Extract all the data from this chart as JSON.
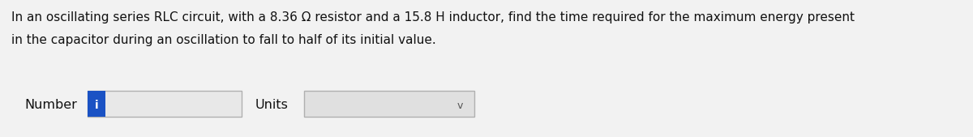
{
  "background_color": "#f2f2f2",
  "text_line1": "In an oscillating series RLC circuit, with a 8.36 Ω resistor and a 15.8 H inductor, find the time required for the maximum energy present",
  "text_line2": "in the capacitor during an oscillation to fall to half of its initial value.",
  "number_label": "Number",
  "units_label": "Units",
  "info_button_color": "#1a52c4",
  "info_button_text": "i",
  "input_box_facecolor": "#e8e8e8",
  "input_box_border": "#b0b0b0",
  "units_box_facecolor": "#e0e0e0",
  "units_box_border": "#b0b0b0",
  "chevron": "v",
  "font_size_text": 11.0,
  "font_size_label": 11.5,
  "text_color": "#111111",
  "fig_width": 12.0,
  "fig_height": 1.69,
  "dpi": 100
}
